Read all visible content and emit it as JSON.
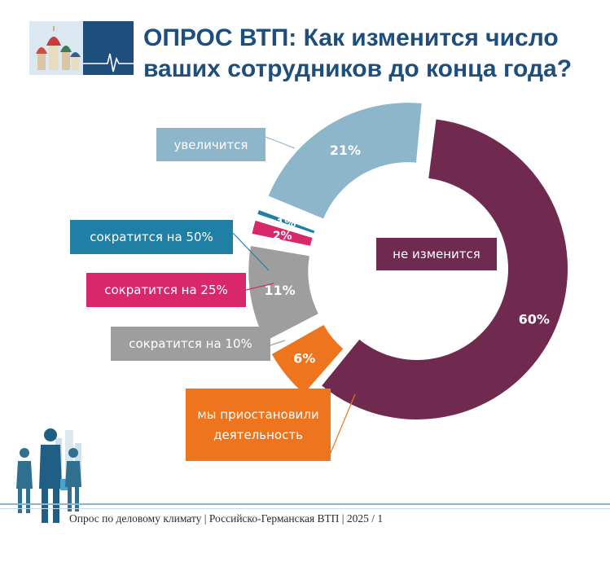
{
  "header": {
    "title_line1": "ОПРОС ВТП: Как изменится число",
    "title_line2": "ваших сотрудников до конца года?"
  },
  "chart_data": {
    "type": "pie",
    "donut": true,
    "categories": [
      "не изменится",
      "мы приостановили деятельность",
      "сократится на 10%",
      "сократится на 25%",
      "сократится на 50%",
      "увеличится"
    ],
    "values": [
      60,
      6,
      11,
      2,
      1,
      21
    ],
    "value_labels": [
      "60%",
      "6%",
      "11%",
      "2%",
      "1%",
      "21%"
    ],
    "colors": [
      "#702a50",
      "#ee741d",
      "#9e9e9e",
      "#d8286b",
      "#1f7fa4",
      "#8db6cb"
    ],
    "legend_labels": {
      "same": "не изменится",
      "stop": "мы приостановили деятельность",
      "cut10": "сократится на 10%",
      "cut25": "сократится на 25%",
      "cut50": "сократится на 50%",
      "grow": "увеличится"
    }
  },
  "footer": {
    "text": "Опрос по деловому климату | Российско-Германская ВТП |  2025 / 1"
  }
}
